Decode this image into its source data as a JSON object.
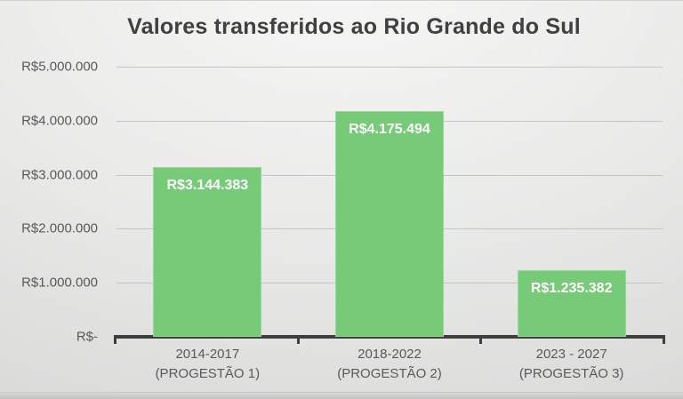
{
  "chart_data": {
    "type": "bar",
    "title": "Valores transferidos ao Rio Grande do Sul",
    "categories": [
      [
        "2014-2017",
        "(PROGESTÃO 1)"
      ],
      [
        "2018-2022",
        "(PROGESTÃO 2)"
      ],
      [
        "2023 - 2027",
        "(PROGESTÃO 3)"
      ]
    ],
    "values": [
      3144383,
      4175494,
      1235382
    ],
    "bar_labels": [
      "R$3.144.383",
      "R$4.175.494",
      "R$1.235.382"
    ],
    "y_ticks": {
      "labels": [
        "R$5.000.000",
        "R$4.000.000",
        "R$3.000.000",
        "R$2.000.000",
        "R$1.000.000",
        "R$-"
      ],
      "values": [
        5000000,
        4000000,
        3000000,
        2000000,
        1000000,
        0
      ]
    },
    "ylim": [
      0,
      5000000
    ],
    "xlabel": "",
    "ylabel": "",
    "grid": true,
    "legend": "none",
    "colors": {
      "bar": "#77CB78",
      "bar_label": "#FFFFFF",
      "title": "#404040",
      "axis_text": "#595959",
      "gridline": "#C4C4C3",
      "axis_line": "#3E3E3E"
    }
  }
}
